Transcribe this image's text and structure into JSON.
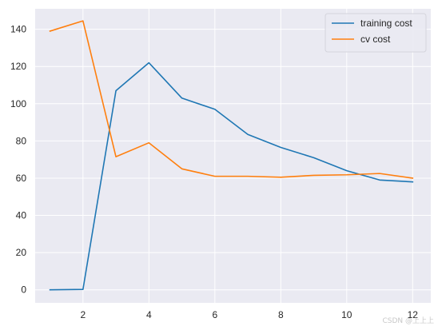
{
  "chart_data": {
    "type": "line",
    "title": "",
    "xlabel": "",
    "ylabel": "",
    "x": [
      1,
      2,
      3,
      4,
      5,
      6,
      7,
      8,
      9,
      10,
      11,
      12
    ],
    "xlim": [
      0.55,
      12.55
    ],
    "ylim": [
      -7,
      151
    ],
    "x_ticks": [
      2,
      4,
      6,
      8,
      10,
      12
    ],
    "y_ticks": [
      0,
      20,
      40,
      60,
      80,
      100,
      120,
      140
    ],
    "grid": true,
    "legend_position": "top-right",
    "series": [
      {
        "name": "training cost",
        "color": "#1f77b4",
        "values": [
          0,
          0.2,
          107,
          122,
          103,
          97,
          83.5,
          76.5,
          71,
          64,
          59,
          58
        ]
      },
      {
        "name": "cv cost",
        "color": "#ff7f0e",
        "values": [
          139,
          144.5,
          71.5,
          79,
          65,
          61,
          61,
          60.5,
          61.5,
          61.8,
          62.5,
          60
        ]
      }
    ]
  },
  "watermark": "CSDN @上上上"
}
